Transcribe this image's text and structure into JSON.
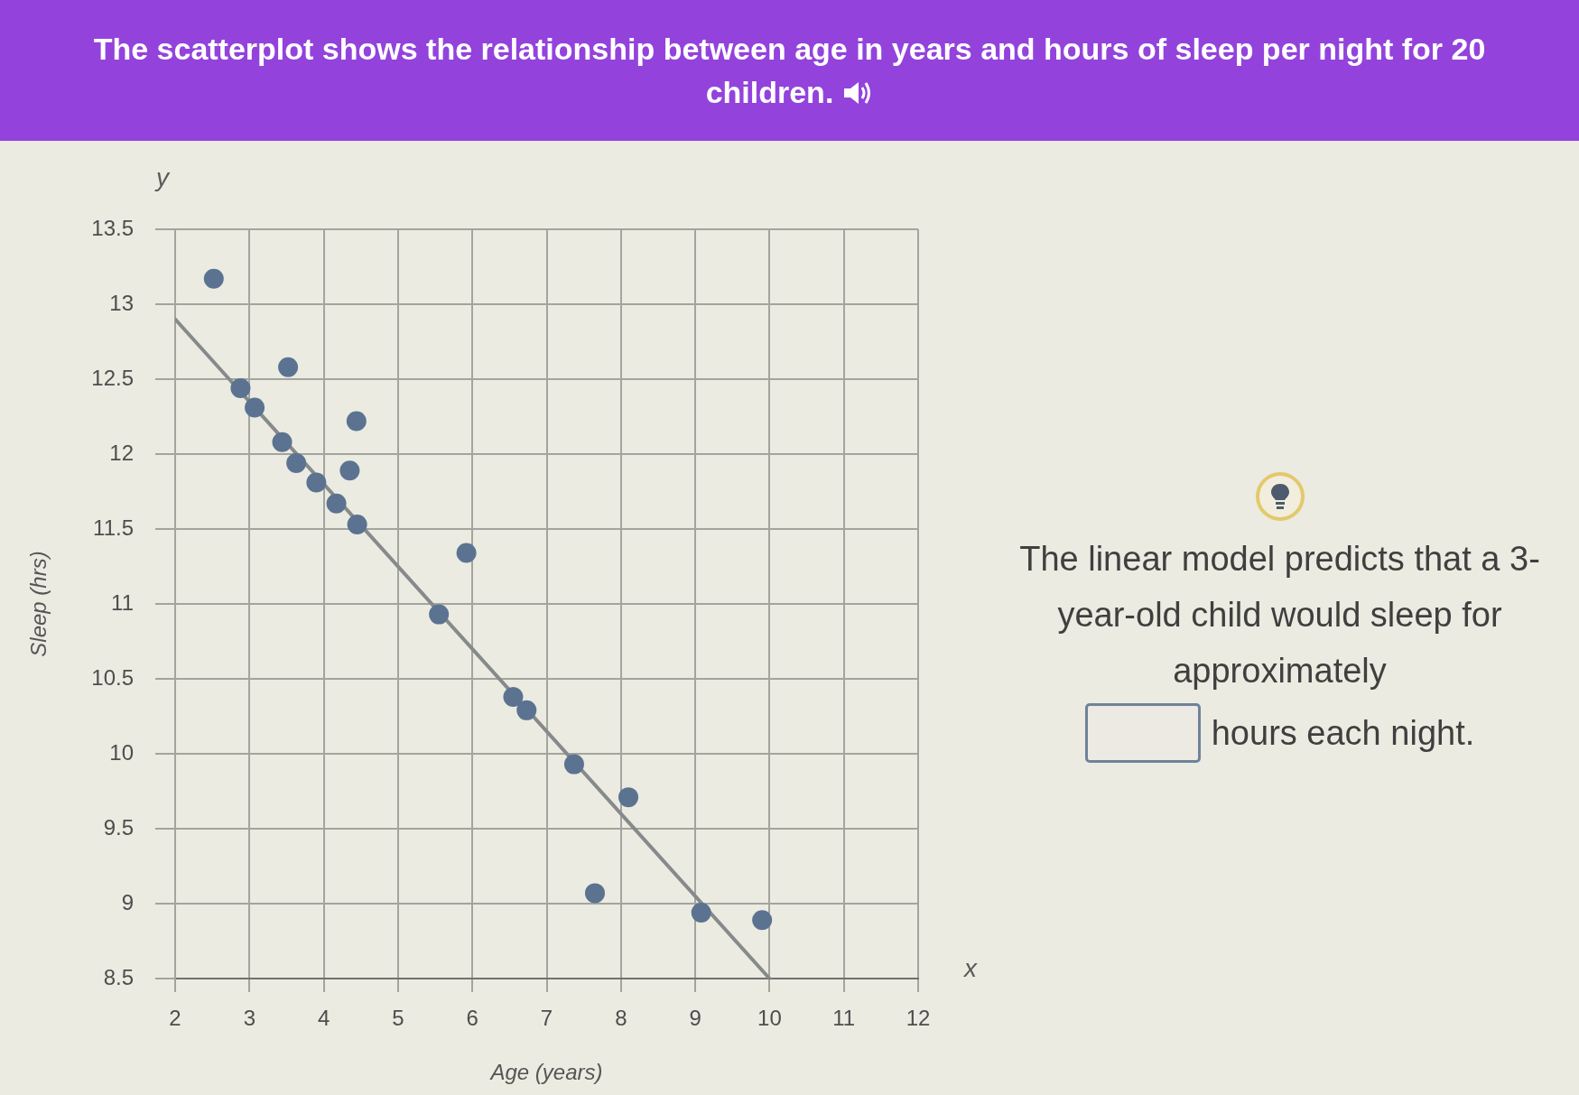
{
  "chart_data": {
    "type": "scatter",
    "title": "The scatterplot shows the relationship between age in years and hours of sleep per night for 20 children.",
    "xlabel": "Age (years)",
    "ylabel": "Sleep (hrs)",
    "series": [
      {
        "type": "scatter",
        "color": "#5b7390",
        "x": [
          2.52,
          2.88,
          3.07,
          3.44,
          3.52,
          3.63,
          3.9,
          4.17,
          4.35,
          4.44,
          4.45,
          5.55,
          5.92,
          6.55,
          6.73,
          7.37,
          7.65,
          8.1,
          9.08,
          9.9
        ],
        "values": [
          13.17,
          12.44,
          12.31,
          12.08,
          12.58,
          11.94,
          11.81,
          11.67,
          11.89,
          12.22,
          11.53,
          10.93,
          11.34,
          10.38,
          10.29,
          9.93,
          9.07,
          9.71,
          8.94,
          8.89
        ]
      },
      {
        "type": "line",
        "color": "#868a8b",
        "marker": "none",
        "x": [
          2,
          10
        ],
        "values": [
          12.9,
          8.5
        ]
      }
    ],
    "xlim": [
      2,
      12
    ],
    "ylim": [
      8.5,
      13.5
    ],
    "xticks": [
      2,
      3,
      4,
      5,
      6,
      7,
      8,
      9,
      10,
      11,
      12
    ],
    "yticks": [
      8.5,
      9,
      9.5,
      10,
      10.5,
      11,
      11.5,
      12,
      12.5,
      13,
      13.5
    ],
    "grid": true,
    "marker": "circle",
    "annotations": [
      "y",
      "x",
      "The linear model predicts that a 3-year-old child would sleep for approximately",
      "hours each night."
    ]
  }
}
